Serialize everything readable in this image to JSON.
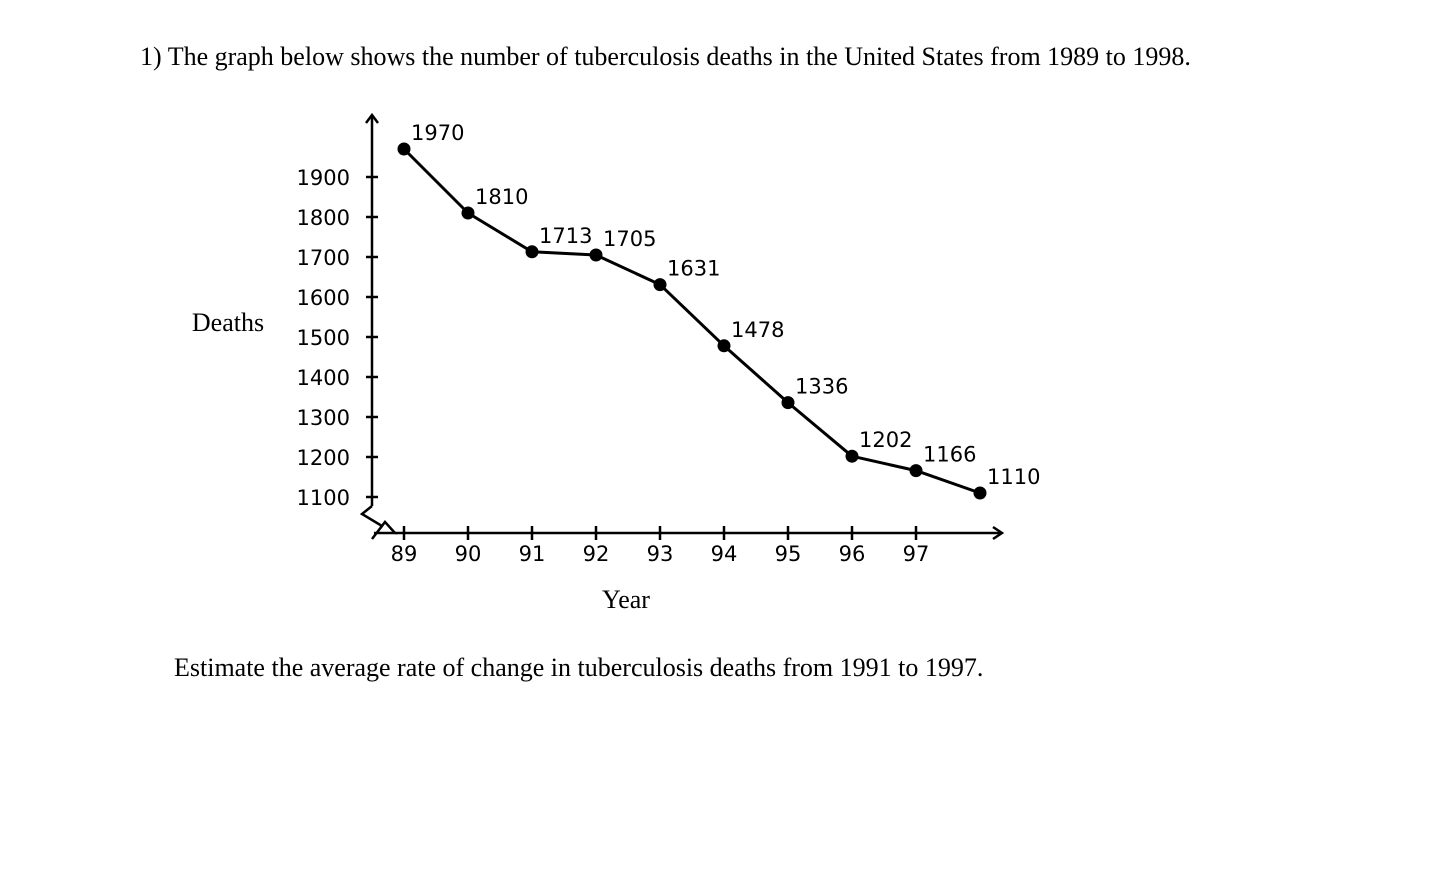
{
  "question": "1) The graph below shows the number of tuberculosis deaths in the United States from 1989 to 1998.",
  "prompt": "Estimate the average rate of change in tuberculosis deaths from 1991 to 1997.",
  "chart_data": {
    "type": "line",
    "title": "",
    "xlabel": "Year",
    "ylabel": "Deaths",
    "x": [
      89,
      90,
      91,
      92,
      93,
      94,
      95,
      96,
      97,
      98
    ],
    "x_tick_labels": [
      "89",
      "90",
      "91",
      "92",
      "93",
      "94",
      "95",
      "96",
      "97"
    ],
    "y_ticks": [
      1100,
      1200,
      1300,
      1400,
      1500,
      1600,
      1700,
      1800,
      1900
    ],
    "y_tick_labels": [
      "1100",
      "1200",
      "1300",
      "1400",
      "1500",
      "1600",
      "1700",
      "1800",
      "1900"
    ],
    "series": [
      {
        "values": [
          1970,
          1810,
          1713,
          1705,
          1631,
          1478,
          1336,
          1202,
          1166,
          1110
        ],
        "labels": [
          "1970",
          "1810",
          "1713",
          "1705",
          "1631",
          "1478",
          "1336",
          "1202",
          "1166",
          "1110"
        ]
      }
    ],
    "y_axis_break": true,
    "grid": false,
    "color": "#000000"
  }
}
